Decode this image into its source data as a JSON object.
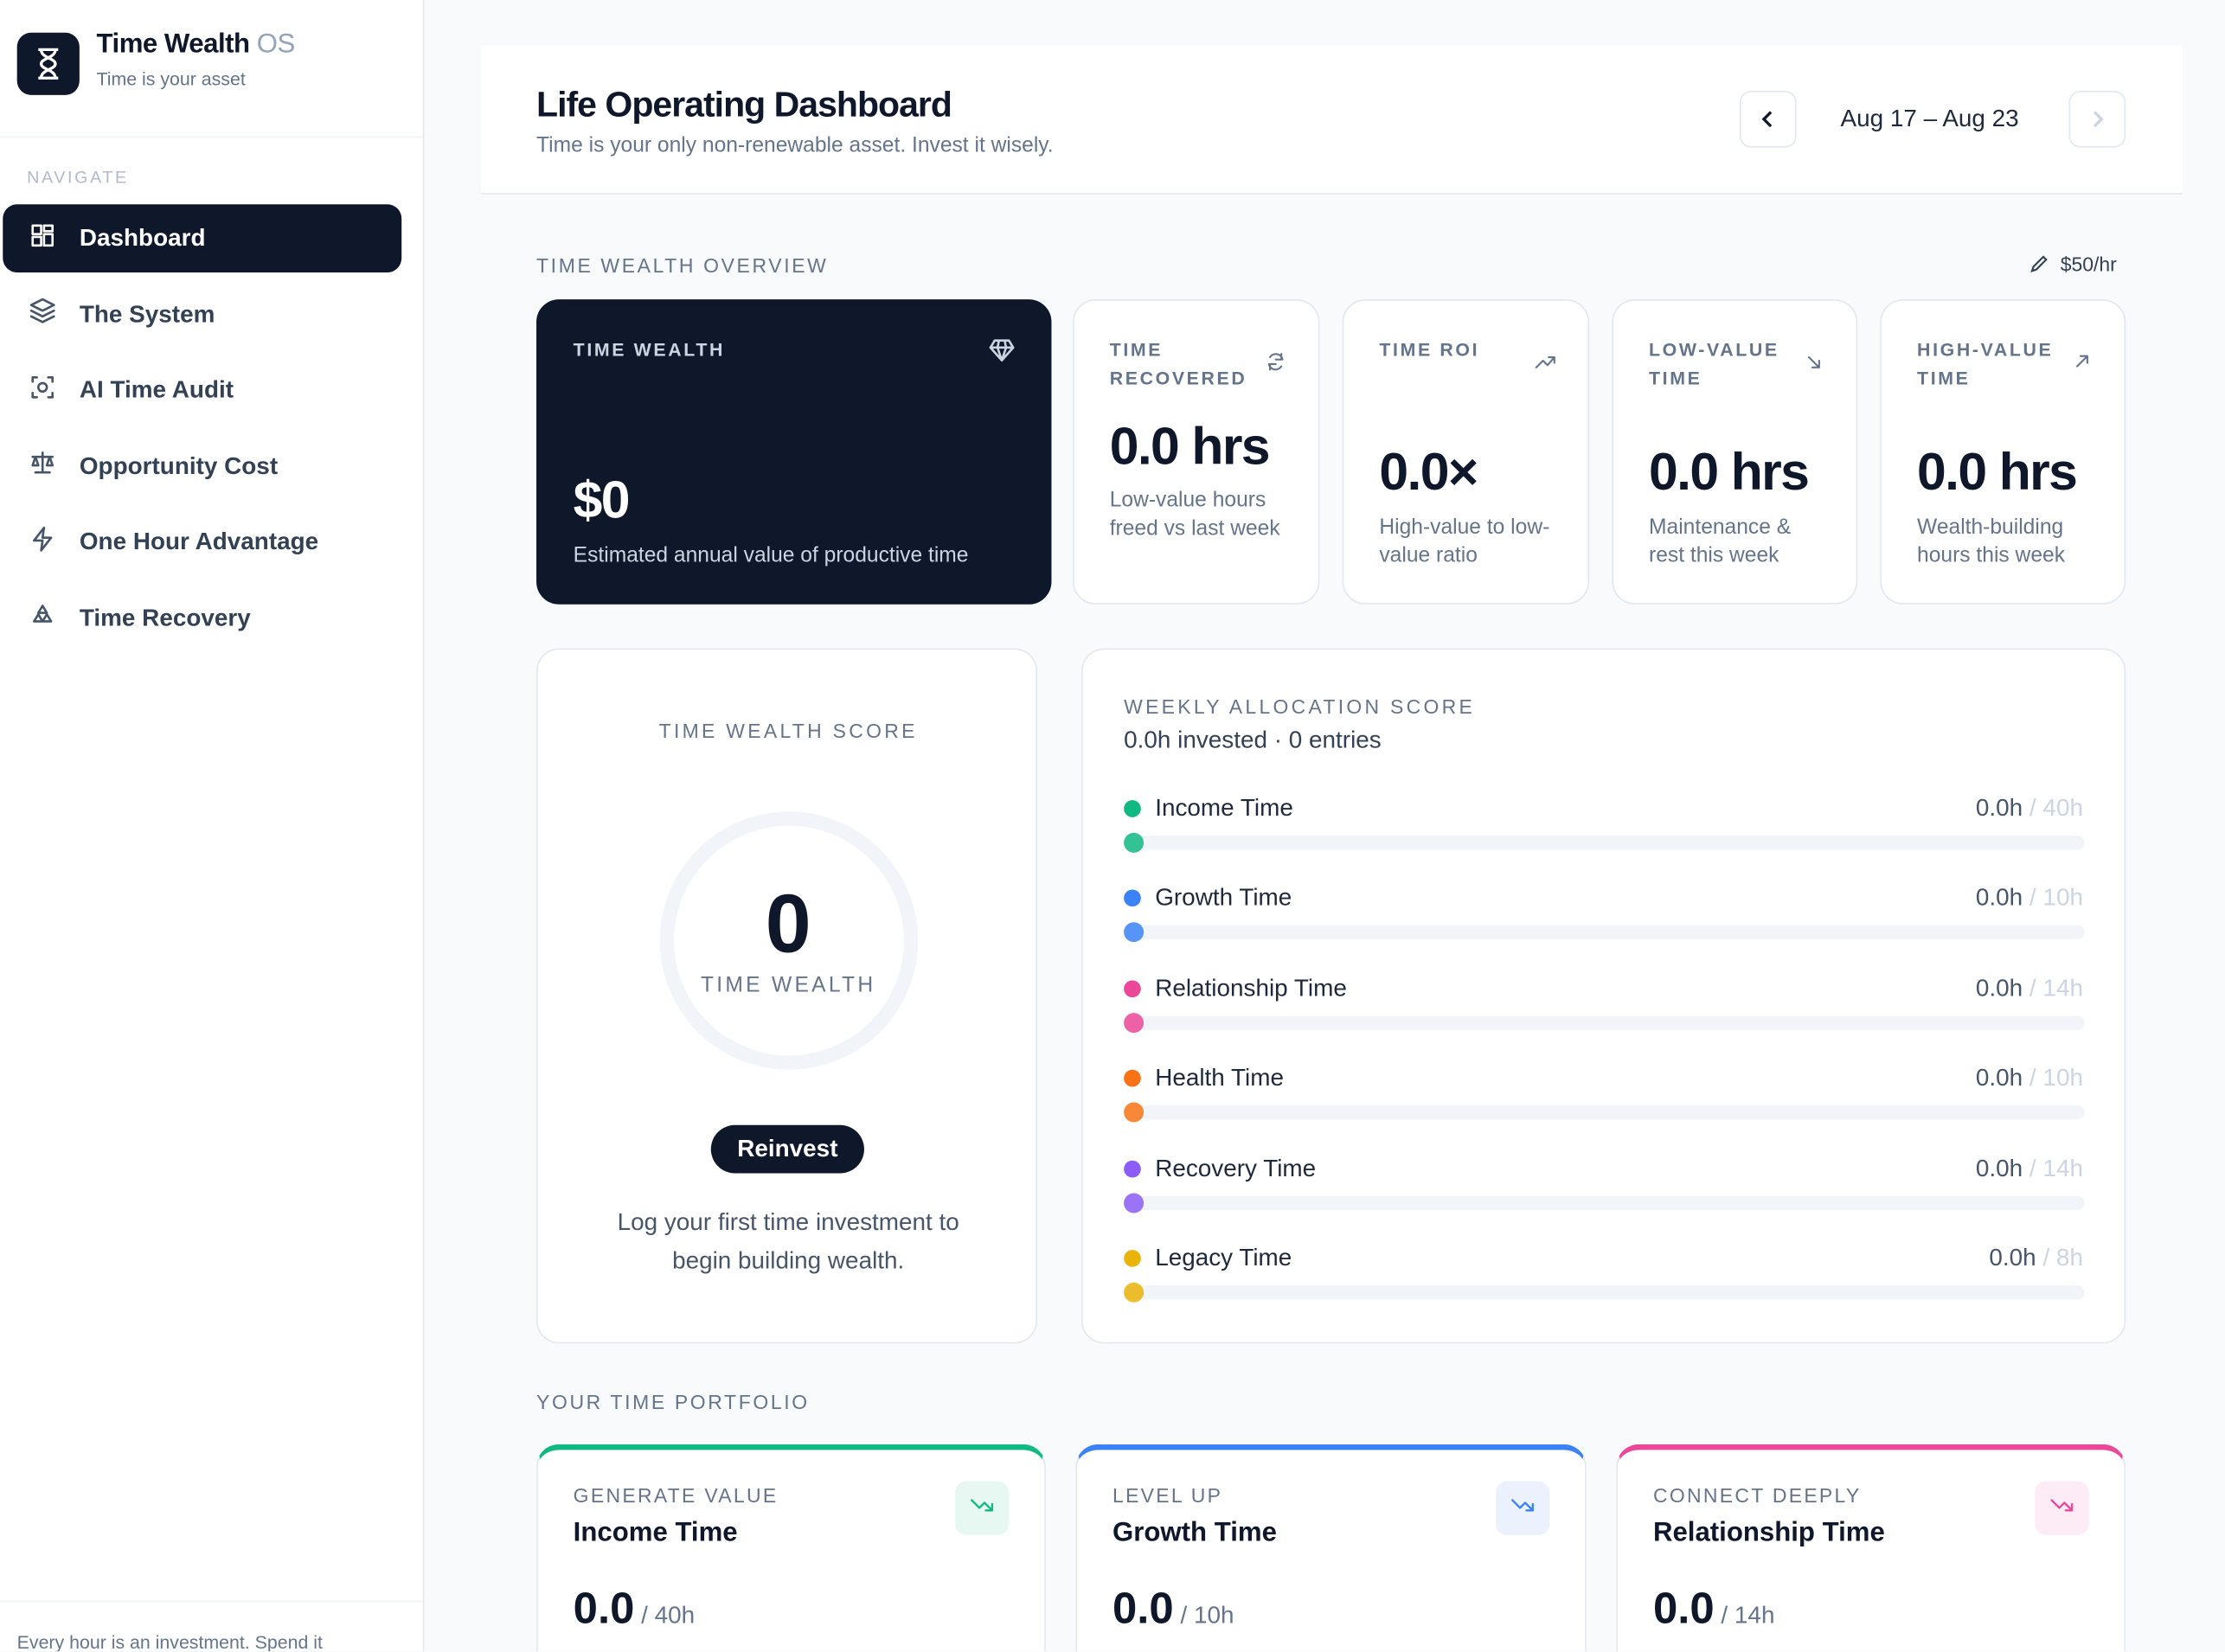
{
  "sidebar": {
    "brand": "Time Wealth",
    "brand_suffix": "OS",
    "tagline": "Time is your asset",
    "nav_heading": "NAVIGATE",
    "nav": [
      "Dashboard",
      "The System",
      "AI Time Audit",
      "Opportunity Cost",
      "One Hour Advantage",
      "Time Recovery"
    ],
    "active": 0,
    "footer": "Every hour is an investment. Spend it"
  },
  "header": {
    "title": "Life Operating Dashboard",
    "subtitle": "Time is your only non-renewable asset. Invest it wisely.",
    "date_range": "Aug 17 – Aug 23"
  },
  "overview": {
    "heading": "TIME WEALTH OVERVIEW",
    "rate": "$50/hr",
    "cards": [
      {
        "label": "TIME WEALTH",
        "value": "$0",
        "caption": "Estimated annual value of productive time"
      },
      {
        "label": "TIME RECOVERED",
        "value": "0.0 hrs",
        "caption": "Low-value hours freed vs last week"
      },
      {
        "label": "TIME ROI",
        "value": "0.0×",
        "caption": "High-value to low-value ratio"
      },
      {
        "label": "LOW-VALUE TIME",
        "value": "0.0 hrs",
        "caption": "Maintenance & rest this week"
      },
      {
        "label": "HIGH-VALUE TIME",
        "value": "0.0 hrs",
        "caption": "Wealth-building hours this week"
      }
    ]
  },
  "score": {
    "heading": "TIME WEALTH SCORE",
    "value": "0",
    "unit_label": "TIME WEALTH",
    "badge": "Reinvest",
    "message": "Log your first time investment to begin building wealth."
  },
  "allocation": {
    "heading": "WEEKLY ALLOCATION SCORE",
    "summary": "0.0h invested · 0 entries",
    "rows": [
      {
        "name": "Income Time",
        "logged": "0.0h",
        "target": "/ 40h",
        "color": "#10b981"
      },
      {
        "name": "Growth Time",
        "logged": "0.0h",
        "target": "/ 10h",
        "color": "#3b82f6"
      },
      {
        "name": "Relationship Time",
        "logged": "0.0h",
        "target": "/ 14h",
        "color": "#ec4899"
      },
      {
        "name": "Health Time",
        "logged": "0.0h",
        "target": "/ 10h",
        "color": "#f97316"
      },
      {
        "name": "Recovery Time",
        "logged": "0.0h",
        "target": "/ 14h",
        "color": "#8b5cf6"
      },
      {
        "name": "Legacy Time",
        "logged": "0.0h",
        "target": "/ 8h",
        "color": "#eab308"
      }
    ]
  },
  "portfolio": {
    "heading": "YOUR TIME PORTFOLIO",
    "cards": [
      {
        "kicker": "GENERATE VALUE",
        "name": "Income Time",
        "value": "0.0",
        "target": "/ 40h",
        "color": "#10b981"
      },
      {
        "kicker": "LEVEL UP",
        "name": "Growth Time",
        "value": "0.0",
        "target": "/ 10h",
        "color": "#3b82f6"
      },
      {
        "kicker": "CONNECT DEEPLY",
        "name": "Relationship Time",
        "value": "0.0",
        "target": "/ 14h",
        "color": "#ec4899"
      }
    ]
  }
}
